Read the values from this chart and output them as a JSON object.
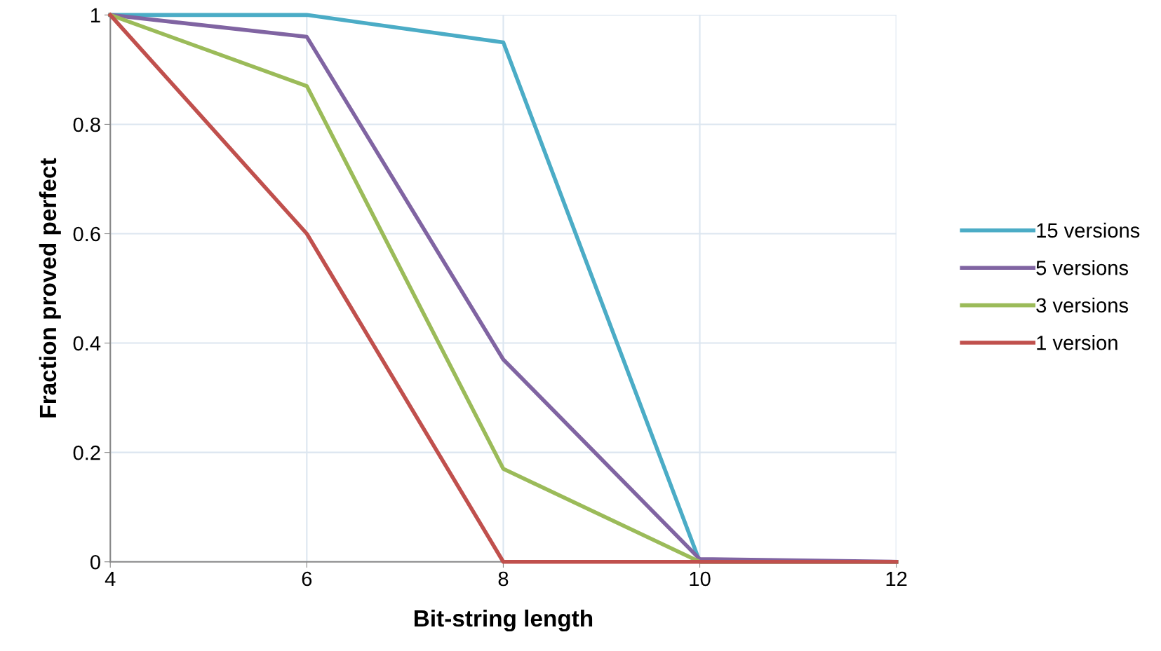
{
  "chart_data": {
    "type": "line",
    "xlabel": "Bit-string length",
    "ylabel": "Fraction proved perfect",
    "x": [
      4,
      6,
      8,
      10,
      12
    ],
    "series": [
      {
        "name": "15 versions",
        "color": "#4bacc6",
        "values": [
          1,
          1,
          0.95,
          0,
          0
        ]
      },
      {
        "name": "5 versions",
        "color": "#8064a2",
        "values": [
          1,
          0.96,
          0.37,
          0.005,
          0
        ]
      },
      {
        "name": "3 versions",
        "color": "#9bbb59",
        "values": [
          1,
          0.87,
          0.17,
          0,
          0
        ]
      },
      {
        "name": "1 version",
        "color": "#c0504d",
        "values": [
          1,
          0.6,
          0,
          0,
          0
        ]
      }
    ],
    "xlim": [
      4,
      12
    ],
    "xticks": [
      4,
      6,
      8,
      10,
      12
    ],
    "ylim": [
      0,
      1
    ],
    "yticks": [
      0,
      0.2,
      0.4,
      0.6,
      0.8,
      1
    ],
    "grid": true,
    "legend": "right",
    "marker": "none",
    "line_style": "solid"
  }
}
